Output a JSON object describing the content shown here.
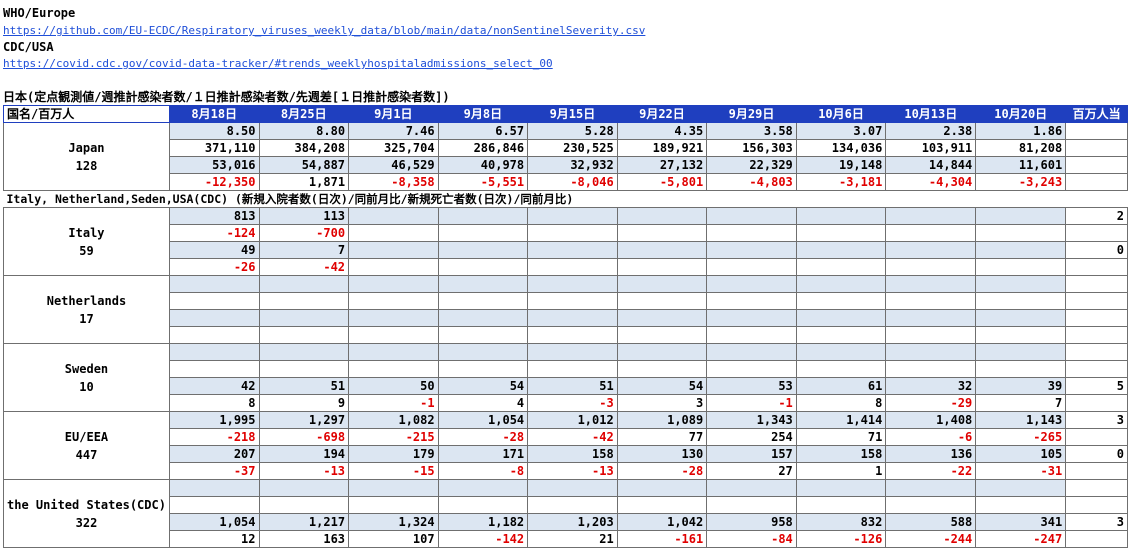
{
  "header": {
    "who_label": "WHO/Europe",
    "who_url": "https://github.com/EU-ECDC/Respiratory_viruses_weekly_data/blob/main/data/nonSentinelSeverity.csv",
    "cdc_label": "CDC/USA",
    "cdc_url": "https://covid.cdc.gov/covid-data-tracker/#trends_weeklyhospitaladmissions_select_00",
    "japan_title": "日本(定点観測値/週推計感染者数/１日推計感染者数/先週差[１日推計感染者数])"
  },
  "table": {
    "corner": "国名/百万人",
    "dates": [
      "8月18日",
      "8月25日",
      "9月1日",
      "9月8日",
      "9月15日",
      "9月22日",
      "9月29日",
      "10月6日",
      "10月13日",
      "10月20日"
    ],
    "per_million_label": "百万人当",
    "section_title": "Italy, Netherland,Seden,USA(CDC) (新規入院者数(日次)/同前月比/新規死亡者数(日次)/同前月比)",
    "countries": [
      {
        "name": "Japan",
        "pop": "128",
        "rows": [
          {
            "v": [
              "8.50",
              "8.80",
              "7.46",
              "6.57",
              "5.28",
              "4.35",
              "3.58",
              "3.07",
              "2.38",
              "1.86"
            ],
            "pm": ""
          },
          {
            "v": [
              "371,110",
              "384,208",
              "325,704",
              "286,846",
              "230,525",
              "189,921",
              "156,303",
              "134,036",
              "103,911",
              "81,208"
            ],
            "pm": ""
          },
          {
            "v": [
              "53,016",
              "54,887",
              "46,529",
              "40,978",
              "32,932",
              "27,132",
              "22,329",
              "19,148",
              "14,844",
              "11,601"
            ],
            "pm": ""
          },
          {
            "v": [
              "-12,350",
              "1,871",
              "-8,358",
              "-5,551",
              "-8,046",
              "-5,801",
              "-4,803",
              "-3,181",
              "-4,304",
              "-3,243"
            ],
            "pm": ""
          }
        ]
      },
      {
        "name": "Italy",
        "pop": "59",
        "rows": [
          {
            "v": [
              "813",
              "113",
              "",
              "",
              "",
              "",
              "",
              "",
              "",
              ""
            ],
            "pm": "2"
          },
          {
            "v": [
              "-124",
              "-700",
              "",
              "",
              "",
              "",
              "",
              "",
              "",
              ""
            ],
            "pm": ""
          },
          {
            "v": [
              "49",
              "7",
              "",
              "",
              "",
              "",
              "",
              "",
              "",
              ""
            ],
            "pm": "0"
          },
          {
            "v": [
              "-26",
              "-42",
              "",
              "",
              "",
              "",
              "",
              "",
              "",
              ""
            ],
            "pm": ""
          }
        ]
      },
      {
        "name": "Netherlands",
        "pop": "17",
        "rows": [
          {
            "v": [
              "",
              "",
              "",
              "",
              "",
              "",
              "",
              "",
              "",
              ""
            ],
            "pm": ""
          },
          {
            "v": [
              "",
              "",
              "",
              "",
              "",
              "",
              "",
              "",
              "",
              ""
            ],
            "pm": ""
          },
          {
            "v": [
              "",
              "",
              "",
              "",
              "",
              "",
              "",
              "",
              "",
              ""
            ],
            "pm": ""
          },
          {
            "v": [
              "",
              "",
              "",
              "",
              "",
              "",
              "",
              "",
              "",
              ""
            ],
            "pm": ""
          }
        ]
      },
      {
        "name": "Sweden",
        "pop": "10",
        "rows": [
          {
            "v": [
              "",
              "",
              "",
              "",
              "",
              "",
              "",
              "",
              "",
              ""
            ],
            "pm": ""
          },
          {
            "v": [
              "",
              "",
              "",
              "",
              "",
              "",
              "",
              "",
              "",
              ""
            ],
            "pm": ""
          },
          {
            "v": [
              "42",
              "51",
              "50",
              "54",
              "51",
              "54",
              "53",
              "61",
              "32",
              "39"
            ],
            "pm": "5"
          },
          {
            "v": [
              "8",
              "9",
              "-1",
              "4",
              "-3",
              "3",
              "-1",
              "8",
              "-29",
              "7"
            ],
            "pm": ""
          }
        ]
      },
      {
        "name": "EU/EEA",
        "pop": "447",
        "rows": [
          {
            "v": [
              "1,995",
              "1,297",
              "1,082",
              "1,054",
              "1,012",
              "1,089",
              "1,343",
              "1,414",
              "1,408",
              "1,143"
            ],
            "pm": "3"
          },
          {
            "v": [
              "-218",
              "-698",
              "-215",
              "-28",
              "-42",
              "77",
              "254",
              "71",
              "-6",
              "-265"
            ],
            "pm": ""
          },
          {
            "v": [
              "207",
              "194",
              "179",
              "171",
              "158",
              "130",
              "157",
              "158",
              "136",
              "105"
            ],
            "pm": "0"
          },
          {
            "v": [
              "-37",
              "-13",
              "-15",
              "-8",
              "-13",
              "-28",
              "27",
              "1",
              "-22",
              "-31"
            ],
            "pm": ""
          }
        ]
      },
      {
        "name": "the United States(CDC)",
        "pop": "322",
        "rows": [
          {
            "v": [
              "",
              "",
              "",
              "",
              "",
              "",
              "",
              "",
              "",
              ""
            ],
            "pm": ""
          },
          {
            "v": [
              "",
              "",
              "",
              "",
              "",
              "",
              "",
              "",
              "",
              ""
            ],
            "pm": ""
          },
          {
            "v": [
              "1,054",
              "1,217",
              "1,324",
              "1,182",
              "1,203",
              "1,042",
              "958",
              "832",
              "588",
              "341"
            ],
            "pm": "3"
          },
          {
            "v": [
              "12",
              "163",
              "107",
              "-142",
              "21",
              "-161",
              "-84",
              "-126",
              "-244",
              "-247"
            ],
            "pm": ""
          }
        ]
      }
    ]
  }
}
